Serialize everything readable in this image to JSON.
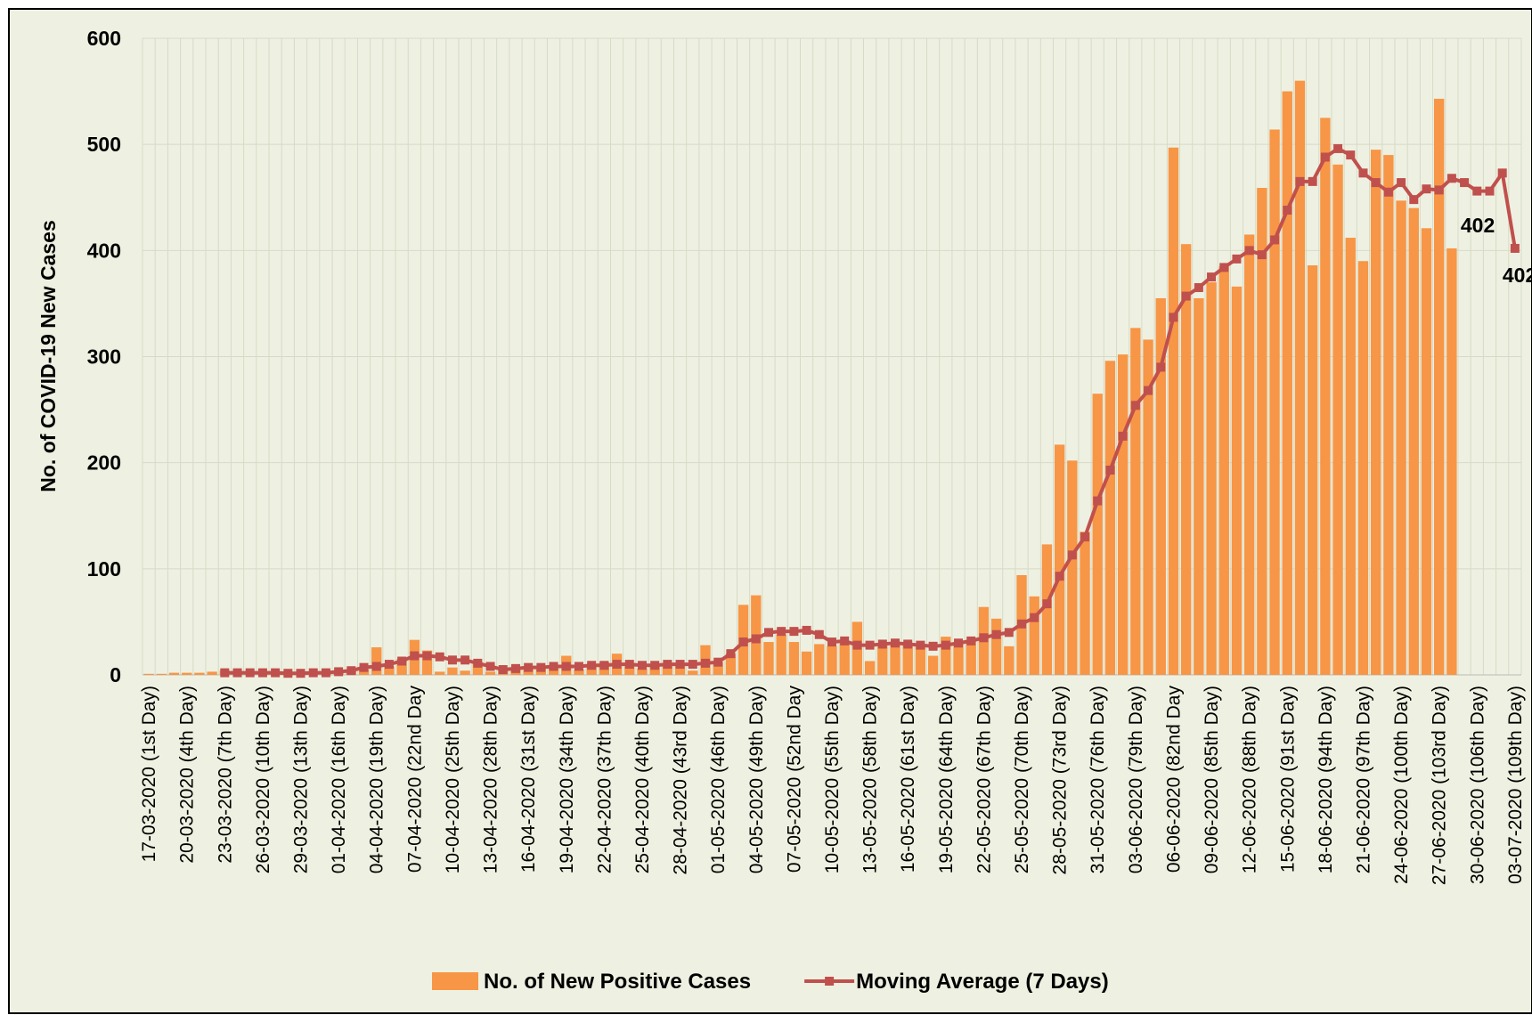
{
  "chart_data": {
    "type": "bar_line",
    "y_axis_label": "No. of COVID-19 New Cases",
    "categories": [
      "17-03-2020 (1st Day)",
      null,
      null,
      "20-03-2020 (4th Day)",
      null,
      null,
      "23-03-2020 (7th Day)",
      null,
      null,
      "26-03-2020 (10th Day)",
      null,
      null,
      "29-03-2020 (13th Day)",
      null,
      null,
      "01-04-2020 (16th Day)",
      null,
      null,
      "04-04-2020 (19th Day)",
      null,
      null,
      "07-04-2020 (22nd Day",
      null,
      null,
      "10-04-2020 (25th Day)",
      null,
      null,
      "13-04-2020 (28th Day)",
      null,
      null,
      "16-04-2020 (31st Day)",
      null,
      null,
      "19-04-2020 (34th Day)",
      null,
      null,
      "22-04-2020 (37th Day)",
      null,
      null,
      "25-04-2020 (40th Day)",
      null,
      null,
      "28-04-2020 (43rd Day)",
      null,
      null,
      "01-05-2020 (46th Day)",
      null,
      null,
      "04-05-2020 (49th Day)",
      null,
      null,
      "07-05-2020 (52nd Day",
      null,
      null,
      "10-05-2020 (55th Day)",
      null,
      null,
      "13-05-2020 (58th Day)",
      null,
      null,
      "16-05-2020 (61st Day)",
      null,
      null,
      "19-05-2020 (64th Day)",
      null,
      null,
      "22-05-2020 (67th Day)",
      null,
      null,
      "25-05-2020 (70th Day)",
      null,
      null,
      "28-05-2020 (73rd Day)",
      null,
      null,
      "31-05-2020 (76th Day)",
      null,
      null,
      "03-06-2020 (79th Day)",
      null,
      null,
      "06-06-2020 (82nd Day",
      null,
      null,
      "09-06-2020 (85th Day)",
      null,
      null,
      "12-06-2020 (88th Day)",
      null,
      null,
      "15-06-2020 (91st Day)",
      null,
      null,
      "18-06-2020 (94th Day)",
      null,
      null,
      "21-06-2020 (97th Day)",
      null,
      null,
      "24-06-2020 (100th Day)",
      null,
      null,
      "27-06-2020 (103rd Day)",
      null,
      null,
      "30-06-2020 (106th Day)",
      null,
      null,
      "03-07-2020 (109th Day)"
    ],
    "series": [
      {
        "name": "No. of New Positive Cases",
        "kind": "bar",
        "color": "#f79646",
        "values": [
          1,
          1,
          2,
          2,
          2,
          3,
          4,
          3,
          2,
          3,
          2,
          2,
          3,
          2,
          3,
          3,
          4,
          5,
          26,
          8,
          15,
          33,
          23,
          3,
          7,
          4,
          12,
          3,
          5,
          6,
          8,
          7,
          9,
          18,
          5,
          8,
          12,
          20,
          8,
          6,
          10,
          11,
          10,
          4,
          28,
          12,
          20,
          66,
          75,
          31,
          38,
          31,
          22,
          29,
          27,
          30,
          50,
          13,
          30,
          31,
          28,
          28,
          18,
          36,
          30,
          32,
          64,
          53,
          27,
          94,
          74,
          123,
          217,
          202,
          135,
          265,
          296,
          302,
          327,
          316,
          355,
          497,
          406,
          355,
          370,
          385,
          366,
          415,
          459,
          514,
          550,
          560,
          386,
          525,
          481,
          412,
          390,
          495,
          490,
          447,
          440,
          421,
          543,
          402,
          null,
          null,
          null,
          null,
          null
        ]
      },
      {
        "name": "Moving Average (7 Days)",
        "kind": "line",
        "color": "#c0504d",
        "values": [
          null,
          null,
          null,
          null,
          null,
          null,
          2,
          2,
          2,
          2,
          2,
          1.5,
          1.5,
          2,
          2,
          3,
          4,
          7,
          8,
          10,
          13,
          18,
          18,
          17,
          14,
          14,
          11,
          8,
          5,
          6,
          7,
          7,
          8,
          8,
          8,
          9,
          9,
          10,
          10,
          9,
          9,
          10,
          10,
          10,
          11,
          12,
          20,
          31,
          34,
          40,
          41,
          41,
          42,
          38,
          31,
          32,
          28,
          28,
          29,
          30,
          29,
          28,
          27,
          28,
          30,
          32,
          35,
          38,
          40,
          48,
          54,
          67,
          93,
          113,
          130,
          164,
          193,
          225,
          254,
          268,
          290,
          337,
          357,
          365,
          375,
          384,
          392,
          400,
          396,
          410,
          438,
          465,
          465,
          488,
          496,
          490,
          473,
          464,
          455,
          464,
          448,
          458,
          457,
          468,
          464,
          456,
          456,
          473,
          402
        ]
      }
    ],
    "ylim": [
      0,
      600
    ],
    "yticks": [
      0,
      100,
      200,
      300,
      400,
      500,
      600
    ],
    "grid": true,
    "legend": "bottom"
  }
}
